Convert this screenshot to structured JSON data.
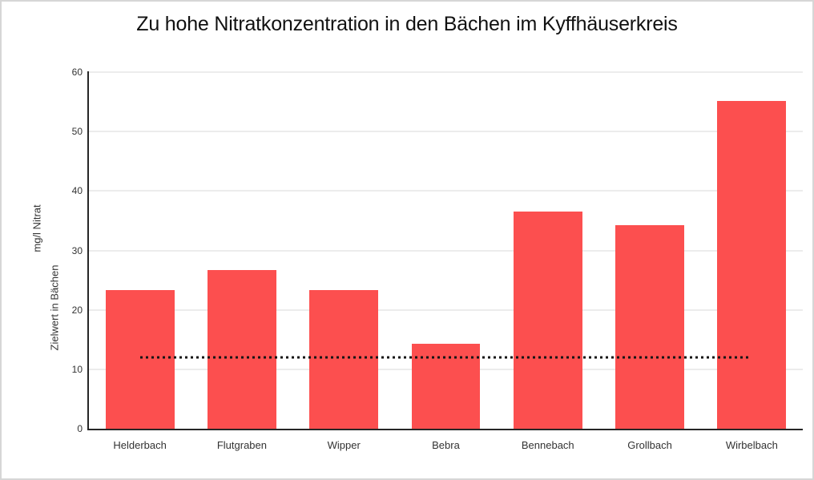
{
  "page": {
    "background_color": "#ffffff",
    "frame_border_color": "#d6d6d6"
  },
  "chart_data": {
    "type": "bar",
    "title": "Zu hohe Nitratkonzentration in den Bächen im Kyffhäuserkreis",
    "categories": [
      "Helderbach",
      "Flutgraben",
      "Wipper",
      "Bebra",
      "Bennebach",
      "Grollbach",
      "Wirbelbach"
    ],
    "values": [
      23.3,
      26.7,
      23.3,
      14.3,
      36.5,
      34.3,
      55.2
    ],
    "ylabel": "mg/l Nitrat",
    "ylabel_secondary": "Zielwert in Bächen",
    "xlabel": "",
    "ylim": [
      0,
      60
    ],
    "yticks": [
      0,
      10,
      20,
      30,
      40,
      50,
      60
    ],
    "grid": true,
    "legend": "none",
    "target_line": {
      "label": "Zielwert in Bächen",
      "value": 12,
      "style": "dotted",
      "color": "#141414"
    },
    "bar_color": "#FC4F4F",
    "gridline_color": "#D9D9D9",
    "axis_line_color": "#262626",
    "tick_text_color": "#333333",
    "title_color": "#111111"
  }
}
